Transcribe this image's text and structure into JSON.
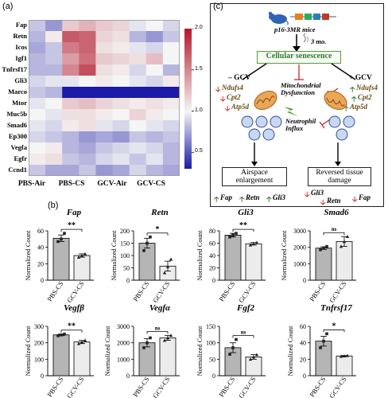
{
  "panel_a": {
    "label": "(a)",
    "rows": [
      "Fap",
      "Retn",
      "Icos",
      "Igf1",
      "Tnfrsf17",
      "Gli3",
      "Marco",
      "Mtor",
      "Muc5b",
      "Smad6",
      "Ep300",
      "Vegfa",
      "Egfr",
      "Ccnd1"
    ],
    "groups": [
      "PBS-Air",
      "PBS-CS",
      "GCV-Air",
      "GCV-CS"
    ],
    "colorbar_ticks": [
      "2.0",
      "1.5",
      "1.0",
      "0.5"
    ],
    "colorbar_range": [
      0.3,
      2.0
    ],
    "matrix": [
      [
        0.85,
        0.7,
        1.2,
        1.3,
        1.2,
        1.15,
        0.95,
        1.0,
        0.9
      ],
      [
        0.8,
        1.05,
        1.7,
        1.65,
        1.15,
        1.1,
        0.8,
        0.7,
        0.85
      ],
      [
        0.75,
        0.85,
        1.55,
        1.65,
        1.1,
        1.05,
        0.95,
        0.9,
        1.0
      ],
      [
        0.8,
        0.85,
        1.4,
        1.6,
        1.2,
        1.15,
        1.1,
        1.25,
        1.0
      ],
      [
        0.8,
        0.8,
        1.5,
        1.75,
        1.1,
        1.05,
        0.9,
        1.0,
        0.8
      ],
      [
        0.9,
        0.95,
        0.95,
        1.0,
        1.05,
        1.0,
        0.95,
        0.9,
        1.05
      ],
      [
        0.85,
        0.8,
        0.3,
        0.3,
        0.3,
        0.3,
        0.3,
        0.3,
        0.3
      ],
      [
        0.95,
        1.0,
        1.2,
        1.25,
        1.15,
        1.1,
        1.05,
        1.1,
        1.05
      ],
      [
        1.0,
        0.95,
        1.1,
        1.1,
        1.05,
        1.0,
        1.15,
        1.05,
        1.0
      ],
      [
        0.95,
        0.9,
        1.05,
        1.1,
        0.95,
        0.9,
        1.0,
        0.95,
        0.9
      ],
      [
        0.9,
        0.85,
        0.8,
        0.7,
        0.75,
        0.7,
        0.85,
        0.8,
        0.85
      ],
      [
        1.0,
        1.05,
        0.8,
        0.75,
        0.85,
        0.9,
        0.95,
        0.9,
        0.8
      ],
      [
        1.05,
        1.1,
        0.85,
        0.8,
        0.9,
        0.95,
        0.85,
        0.95,
        0.8
      ],
      [
        0.85,
        0.75,
        0.75,
        0.85,
        0.7,
        0.75,
        0.9,
        0.8,
        0.75
      ]
    ]
  },
  "panel_b": {
    "label": "(b)",
    "ylabel": "Normalized Count",
    "categories": [
      "PBS-CS",
      "GCV-CS"
    ],
    "charts": [
      {
        "gene": "Fap",
        "sig": "**",
        "ticks": [
          0,
          20,
          40,
          60
        ],
        "values": [
          51,
          30
        ],
        "err": [
          4,
          2
        ],
        "pts": [
          [
            47,
            50,
            57
          ],
          [
            28,
            30,
            32
          ]
        ]
      },
      {
        "gene": "Retn",
        "sig": "*",
        "ticks": [
          0,
          50,
          100,
          150,
          200
        ],
        "values": [
          150,
          57
        ],
        "err": [
          20,
          20
        ],
        "pts": [
          [
            120,
            150,
            175
          ],
          [
            30,
            55,
            85
          ]
        ]
      },
      {
        "gene": "Gli3",
        "sig": "**",
        "ticks": [
          0,
          20,
          40,
          60,
          80
        ],
        "values": [
          73,
          59
        ],
        "err": [
          3,
          2
        ],
        "pts": [
          [
            70,
            73,
            76
          ],
          [
            57,
            59,
            61
          ]
        ]
      },
      {
        "gene": "Smad6",
        "sig": "ns",
        "ticks": [
          0,
          1000,
          2000,
          3000
        ],
        "values": [
          1950,
          2350
        ],
        "err": [
          80,
          300
        ],
        "pts": [
          [
            1850,
            1950,
            2050
          ],
          [
            2050,
            2350,
            2650
          ]
        ]
      },
      {
        "gene": "Vegfβ",
        "sig": "**",
        "ticks": [
          0,
          100,
          200,
          300
        ],
        "values": [
          248,
          205
        ],
        "err": [
          5,
          10
        ],
        "pts": [
          [
            243,
            248,
            253
          ],
          [
            195,
            205,
            215
          ]
        ]
      },
      {
        "gene": "Vegfα",
        "sig": "ns",
        "ticks": [
          0,
          1000,
          2000,
          3000
        ],
        "values": [
          2000,
          2300
        ],
        "err": [
          250,
          150
        ],
        "pts": [
          [
            1700,
            2000,
            2300
          ],
          [
            2150,
            2300,
            2450
          ]
        ]
      },
      {
        "gene": "Fgf2",
        "sig": "ns",
        "ticks": [
          0,
          50,
          100,
          150
        ],
        "values": [
          85,
          57
        ],
        "err": [
          15,
          7
        ],
        "pts": [
          [
            65,
            85,
            110
          ],
          [
            50,
            57,
            64
          ]
        ]
      },
      {
        "gene": "Tnfrsf17",
        "sig": "*",
        "ticks": [
          0,
          20,
          40,
          60
        ],
        "values": [
          42,
          24
        ],
        "err": [
          6,
          0.5
        ],
        "pts": [
          [
            34,
            42,
            51
          ],
          [
            23.5,
            24,
            24.5
          ]
        ]
      }
    ]
  },
  "panel_c": {
    "label": "(c)",
    "mouse_label": "p16-3MR mice",
    "time_label": "3 mo.",
    "senescence": "Cellular senescence",
    "left_treat": "– GCV",
    "right_treat": "+ GCV",
    "left_genes": [
      "Ndufs4",
      "Cpt2",
      "Atp5d"
    ],
    "right_genes": [
      "Ndufs4",
      "Cpt2",
      "Atp5d"
    ],
    "mito": "Mitochondrial Dysfunction",
    "neutrophil": "Neutrophil Influx",
    "outcome_left": "Airspace enlargement",
    "outcome_right": "Reversed tissue damage",
    "bottom_left": [
      "Fap",
      "Retn",
      "Gli3"
    ],
    "bottom_right": [
      "Gli3",
      "Retn",
      "Fap"
    ]
  },
  "colors": {
    "up": "#2e7d32",
    "down": "#c62828",
    "gene": "#6b4a14",
    "box_green": "#5a9a3c",
    "senescence_text": "#2e7d32"
  }
}
